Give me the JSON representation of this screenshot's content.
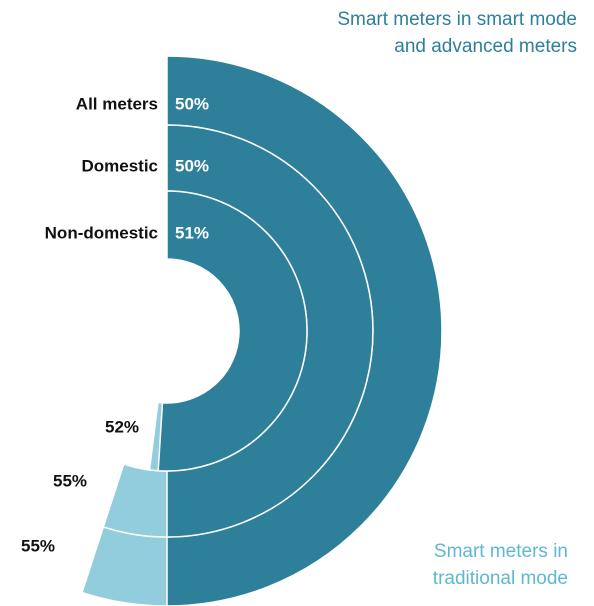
{
  "chart_data": {
    "type": "nested-donut",
    "categories": [
      "All meters",
      "Domestic",
      "Non-domestic"
    ],
    "series": [
      {
        "name": "Smart meters in traditional mode",
        "color": "#92cddd",
        "values": [
          55,
          55,
          52
        ]
      },
      {
        "name": "Smart meters in smart mode and advanced meters",
        "color": "#2e7f99",
        "values": [
          50,
          50,
          51
        ]
      }
    ],
    "value_labels": [
      [
        "55%",
        "55%",
        "52%"
      ],
      [
        "50%",
        "50%",
        "51%"
      ]
    ]
  }
}
